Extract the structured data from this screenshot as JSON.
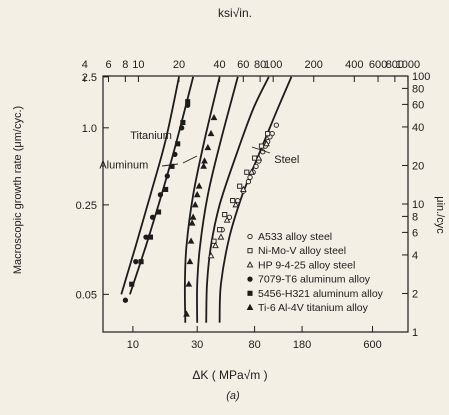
{
  "chart_data": {
    "type": "scatter",
    "xlabel": "ΔK ( MPa√m )",
    "x_top_label": "ksi√in.",
    "ylabel": "Macroscopic growth rate (μm/cyc.)",
    "y_right_label": "μin./cyc",
    "caption": "(a)",
    "x_scale": "log",
    "y_scale": "log",
    "xlim": [
      6,
      1100
    ],
    "ylim": [
      0.0254,
      2.54
    ],
    "x_ticks": [
      10,
      30,
      80,
      180,
      600
    ],
    "x_tick_labels": [
      "10",
      "30",
      "80",
      "180",
      "600"
    ],
    "y_ticks": [
      0.05,
      0.25,
      1.0,
      2.5
    ],
    "y_tick_labels": [
      "0.05",
      "0.25",
      "1.0",
      "2.5"
    ],
    "x_top_ticks": [
      4,
      6,
      8,
      10,
      20,
      40,
      60,
      80,
      100,
      200,
      400,
      600,
      800,
      1000
    ],
    "x_top_tick_labels": [
      "4",
      "6",
      "8",
      "10",
      "20",
      "40",
      "60",
      "80",
      "100",
      "200",
      "400",
      "600",
      "800",
      "1000"
    ],
    "y_right_ticks": [
      1,
      2,
      4,
      6,
      8,
      10,
      20,
      40,
      60,
      80,
      100
    ],
    "y_right_tick_labels": [
      "1",
      "2",
      "4",
      "6",
      "8",
      "10",
      "20",
      "40",
      "60",
      "80",
      "100"
    ],
    "grid": false,
    "legend_position": "bottom-right",
    "annotations": [
      {
        "text": "Titanium",
        "x": 19.5,
        "y": 0.82
      },
      {
        "text": "Aluminum",
        "x": 13.0,
        "y": 0.48
      },
      {
        "text": "Steel",
        "x": 112,
        "y": 0.53
      }
    ],
    "curves": [
      {
        "points": [
          [
            8.2,
            0.05
          ],
          [
            10.5,
            0.12
          ],
          [
            13.5,
            0.3
          ],
          [
            17.5,
            0.8
          ],
          [
            22,
            2.5
          ]
        ]
      },
      {
        "points": [
          [
            9.5,
            0.05
          ],
          [
            12.5,
            0.12
          ],
          [
            16,
            0.28
          ],
          [
            20.5,
            0.7
          ],
          [
            28,
            2.5
          ]
        ]
      },
      {
        "points": [
          [
            24.5,
            0.03
          ],
          [
            24.3,
            0.06
          ],
          [
            25,
            0.12
          ],
          [
            28,
            0.3
          ],
          [
            34,
            0.8
          ],
          [
            44,
            2.5
          ]
        ]
      },
      {
        "points": [
          [
            30,
            0.03
          ],
          [
            30,
            0.06
          ],
          [
            31.5,
            0.12
          ],
          [
            36,
            0.3
          ],
          [
            45,
            0.8
          ],
          [
            60,
            2.5
          ]
        ]
      },
      {
        "points": [
          [
            35,
            0.03
          ],
          [
            35.5,
            0.06
          ],
          [
            38,
            0.12
          ],
          [
            44,
            0.25
          ],
          [
            58,
            0.6
          ],
          [
            78,
            1.4
          ],
          [
            102,
            2.5
          ]
        ]
      },
      {
        "points": [
          [
            44,
            0.03
          ],
          [
            45,
            0.06
          ],
          [
            52,
            0.14
          ],
          [
            65,
            0.3
          ],
          [
            85,
            0.6
          ],
          [
            115,
            1.3
          ],
          [
            150,
            2.5
          ]
        ]
      }
    ],
    "series": [
      {
        "name": "A533 alloy steel",
        "marker": "circle-open",
        "points": [
          [
            46,
            0.16
          ],
          [
            52,
            0.2
          ],
          [
            60,
            0.27
          ],
          [
            66,
            0.32
          ],
          [
            72,
            0.38
          ],
          [
            78,
            0.45
          ],
          [
            86,
            0.55
          ],
          [
            92,
            0.65
          ],
          [
            100,
            0.78
          ],
          [
            108,
            0.9
          ],
          [
            116,
            1.05
          ],
          [
            74,
            0.41
          ],
          [
            82,
            0.5
          ],
          [
            96,
            0.72
          ],
          [
            104,
            0.85
          ]
        ]
      },
      {
        "name": "Ni-Mo-V alloy steel",
        "marker": "square-open",
        "points": [
          [
            40,
            0.13
          ],
          [
            44,
            0.16
          ],
          [
            48,
            0.21
          ],
          [
            55,
            0.27
          ],
          [
            62,
            0.35
          ],
          [
            70,
            0.45
          ],
          [
            80,
            0.58
          ],
          [
            90,
            0.72
          ],
          [
            100,
            0.9
          ]
        ]
      },
      {
        "name": "HP 9-4-25 alloy steel",
        "marker": "triangle-open",
        "points": [
          [
            38,
            0.1
          ],
          [
            41,
            0.12
          ],
          [
            45,
            0.14
          ],
          [
            50,
            0.19
          ],
          [
            58,
            0.25
          ],
          [
            66,
            0.33
          ],
          [
            76,
            0.45
          ],
          [
            86,
            0.58
          ],
          [
            98,
            0.75
          ]
        ]
      },
      {
        "name": "7079-T6 aluminum alloy",
        "marker": "circle-filled",
        "points": [
          [
            8.8,
            0.045
          ],
          [
            10.5,
            0.09
          ],
          [
            12.5,
            0.14
          ],
          [
            14,
            0.2
          ],
          [
            16,
            0.3
          ],
          [
            18,
            0.42
          ],
          [
            20.5,
            0.62
          ],
          [
            23,
            1.0
          ],
          [
            25.5,
            1.5
          ]
        ]
      },
      {
        "name": "5456-H321 aluminum alloy",
        "marker": "square-filled",
        "points": [
          [
            9.8,
            0.06
          ],
          [
            11.5,
            0.09
          ],
          [
            13.5,
            0.14
          ],
          [
            15.5,
            0.22
          ],
          [
            17.5,
            0.33
          ],
          [
            19.5,
            0.5
          ],
          [
            21.5,
            0.75
          ],
          [
            23.5,
            1.1
          ],
          [
            25.5,
            1.6
          ]
        ]
      },
      {
        "name": "Ti-6 Al-4V titanium alloy",
        "marker": "triangle-filled",
        "points": [
          [
            25,
            0.035
          ],
          [
            26,
            0.06
          ],
          [
            26.5,
            0.09
          ],
          [
            27,
            0.13
          ],
          [
            27.5,
            0.18
          ],
          [
            29,
            0.25
          ],
          [
            31,
            0.35
          ],
          [
            33.5,
            0.5
          ],
          [
            36,
            0.7
          ],
          [
            38,
            0.9
          ],
          [
            40,
            1.2
          ],
          [
            34,
            0.55
          ],
          [
            30,
            0.3
          ],
          [
            28,
            0.2
          ]
        ]
      }
    ]
  }
}
